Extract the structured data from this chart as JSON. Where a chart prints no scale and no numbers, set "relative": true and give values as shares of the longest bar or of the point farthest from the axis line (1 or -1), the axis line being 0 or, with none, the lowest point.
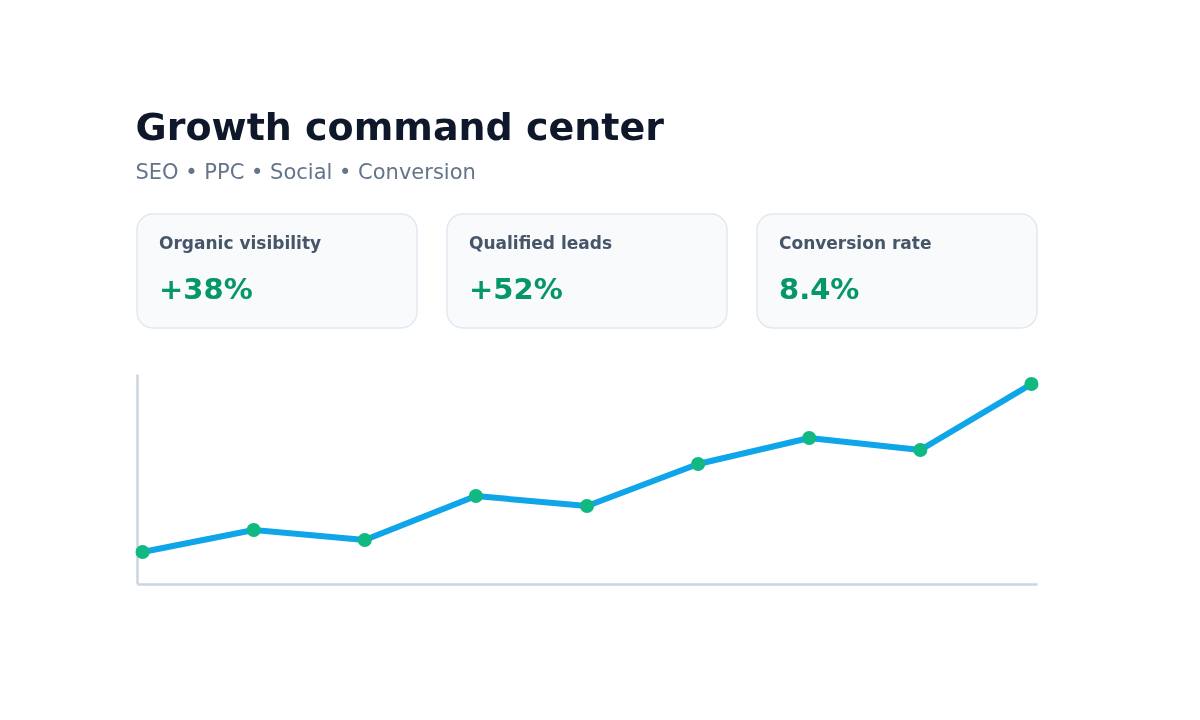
{
  "chart_data": {
    "type": "line",
    "title": "Growth command center",
    "subtitle": "SEO • PPC • Social • Conversion",
    "annotations": [
      "Organic visibility",
      "+38%",
      "Qualified leads",
      "+52%",
      "Conversion rate",
      "8.4%"
    ],
    "categories": [
      null,
      null,
      null,
      null,
      null,
      null,
      null,
      null,
      null
    ],
    "relative": true,
    "marker": "circle",
    "grid": false,
    "series": [
      {
        "color": "#0ea5e9",
        "colors": [
          "#10b981",
          "#10b981",
          "#10b981",
          "#10b981",
          "#10b981",
          "#10b981",
          "#10b981",
          "#10b981",
          "#10b981"
        ],
        "values": [
          0.16,
          0.27,
          0.22,
          0.44,
          0.39,
          0.6,
          0.73,
          0.67,
          1
        ]
      }
    ]
  }
}
